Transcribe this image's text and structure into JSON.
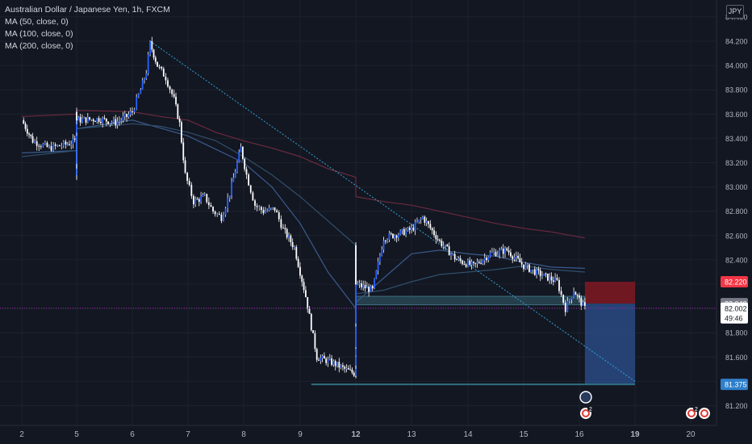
{
  "legend": {
    "symbol": "Australian Dollar / Japanese Yen, 1h, FXCM",
    "ma50": "MA (50, close, 0)",
    "ma100": "MA (100, close, 0)",
    "ma200": "MA (200, close, 0)"
  },
  "currency": "JPY",
  "price_tags": {
    "stop": "82.220",
    "entry": "82.040",
    "last": "82.002",
    "countdown": "49:46",
    "target": "81.375"
  },
  "event_badges": [
    "2",
    "2"
  ],
  "colors": {
    "background": "#131722",
    "candle": "#2962ff",
    "stop_zone": "#801922",
    "target_zone": "#2a4a84",
    "support_zone": "#2b4a57",
    "trendline": "#2ea2d6",
    "ma50": "#3a5a8c",
    "ma100": "#2f4f6b",
    "ma200": "#6b2a3f",
    "stop_tag": "#f23645",
    "target_tag": "#2f7fcb",
    "entry_tag": "#787b86"
  },
  "chart_data": {
    "type": "line",
    "symbol": "AUDJPY",
    "timeframe": "1h",
    "y_ticks": [
      "84.400",
      "84.200",
      "84.000",
      "83.800",
      "83.600",
      "83.400",
      "83.200",
      "83.000",
      "82.800",
      "82.600",
      "82.400",
      "82.200",
      "82.000",
      "81.800",
      "81.600",
      "81.400",
      "81.200"
    ],
    "x_ticks": [
      "2",
      "5",
      "6",
      "7",
      "8",
      "9",
      "12",
      "13",
      "14",
      "15",
      "16",
      "19",
      "20"
    ],
    "ylim": [
      81.1,
      84.45
    ],
    "x_days": [
      2,
      5,
      6,
      7,
      8,
      9,
      12,
      13,
      14,
      15,
      16,
      19,
      20
    ],
    "series": [
      {
        "values": [
          [
            2,
            83.55
          ],
          [
            2.2,
            83.38
          ],
          [
            2.5,
            83.32
          ],
          [
            2.8,
            83.35
          ],
          [
            3.2,
            83.38
          ],
          [
            3.6,
            83.28
          ],
          [
            3.9,
            83.08
          ],
          [
            4.1,
            83.22
          ],
          [
            4.4,
            83.45
          ],
          [
            4.7,
            83.62
          ],
          [
            5.0,
            83.55
          ],
          [
            5.4,
            83.56
          ],
          [
            5.7,
            83.53
          ],
          [
            5.9,
            83.58
          ],
          [
            6.0,
            83.62
          ],
          [
            6.15,
            83.8
          ],
          [
            6.25,
            83.95
          ],
          [
            6.32,
            84.18
          ],
          [
            6.45,
            84.0
          ],
          [
            6.6,
            83.9
          ],
          [
            6.75,
            83.72
          ],
          [
            6.85,
            83.52
          ],
          [
            6.95,
            83.1
          ],
          [
            7.1,
            82.88
          ],
          [
            7.3,
            82.92
          ],
          [
            7.45,
            82.8
          ],
          [
            7.6,
            82.75
          ],
          [
            7.75,
            82.95
          ],
          [
            7.95,
            83.32
          ],
          [
            8.05,
            83.1
          ],
          [
            8.2,
            82.85
          ],
          [
            8.35,
            82.8
          ],
          [
            8.55,
            82.82
          ],
          [
            8.7,
            82.65
          ],
          [
            8.9,
            82.5
          ],
          [
            9.1,
            82.1
          ],
          [
            9.3,
            81.6
          ],
          [
            9.6,
            81.55
          ],
          [
            9.8,
            81.5
          ],
          [
            10.0,
            81.46
          ],
          [
            10.2,
            81.55
          ],
          [
            10.4,
            81.62
          ],
          [
            10.6,
            81.7
          ],
          [
            10.8,
            81.9
          ],
          [
            11.0,
            82.25
          ],
          [
            11.3,
            82.45
          ],
          [
            11.6,
            82.52
          ],
          [
            11.8,
            82.3
          ],
          [
            12.0,
            82.2
          ],
          [
            12.3,
            82.15
          ],
          [
            12.5,
            82.58
          ],
          [
            12.8,
            82.62
          ],
          [
            13.0,
            82.65
          ],
          [
            13.2,
            82.75
          ],
          [
            13.5,
            82.55
          ],
          [
            13.8,
            82.4
          ],
          [
            14.1,
            82.35
          ],
          [
            14.4,
            82.45
          ],
          [
            14.7,
            82.48
          ],
          [
            15.0,
            82.35
          ],
          [
            15.3,
            82.28
          ],
          [
            15.6,
            82.22
          ],
          [
            15.75,
            82.0
          ],
          [
            15.9,
            82.15
          ],
          [
            16.0,
            82.07
          ],
          [
            16.1,
            82.0
          ]
        ]
      },
      {
        "name": "MA (50, close, 0)",
        "values": [
          [
            2,
            83.28
          ],
          [
            3,
            83.3
          ],
          [
            4,
            83.36
          ],
          [
            5,
            83.48
          ],
          [
            6,
            83.55
          ],
          [
            7,
            83.42
          ],
          [
            8,
            83.2
          ],
          [
            8.5,
            83.0
          ],
          [
            9,
            82.7
          ],
          [
            9.5,
            82.3
          ],
          [
            10,
            82.0
          ],
          [
            10.5,
            81.93
          ],
          [
            11,
            81.9
          ],
          [
            11.5,
            81.95
          ],
          [
            12,
            82.05
          ],
          [
            12.5,
            82.25
          ],
          [
            13,
            82.45
          ],
          [
            13.5,
            82.48
          ],
          [
            14,
            82.45
          ],
          [
            14.5,
            82.43
          ],
          [
            15,
            82.38
          ],
          [
            15.5,
            82.34
          ],
          [
            16.1,
            82.33
          ]
        ]
      },
      {
        "name": "MA (100, close, 0)",
        "values": [
          [
            2,
            83.25
          ],
          [
            3,
            83.3
          ],
          [
            4,
            83.38
          ],
          [
            5,
            83.48
          ],
          [
            6,
            83.52
          ],
          [
            6.5,
            83.5
          ],
          [
            7,
            83.45
          ],
          [
            7.5,
            83.38
          ],
          [
            8,
            83.25
          ],
          [
            8.5,
            83.1
          ],
          [
            9,
            82.92
          ],
          [
            9.5,
            82.72
          ],
          [
            10,
            82.52
          ],
          [
            10.5,
            82.35
          ],
          [
            11,
            82.22
          ],
          [
            11.5,
            82.12
          ],
          [
            12,
            82.12
          ],
          [
            12.5,
            82.15
          ],
          [
            13,
            82.22
          ],
          [
            13.5,
            82.28
          ],
          [
            14,
            82.3
          ],
          [
            14.5,
            82.32
          ],
          [
            15,
            82.35
          ],
          [
            15.5,
            82.32
          ],
          [
            16.1,
            82.3
          ]
        ]
      },
      {
        "name": "MA (200, close, 0)",
        "values": [
          [
            2,
            83.58
          ],
          [
            3,
            83.6
          ],
          [
            4,
            83.62
          ],
          [
            5,
            83.63
          ],
          [
            6,
            83.62
          ],
          [
            6.5,
            83.58
          ],
          [
            7,
            83.55
          ],
          [
            7.5,
            83.45
          ],
          [
            8,
            83.38
          ],
          [
            8.5,
            83.32
          ],
          [
            9,
            83.25
          ],
          [
            9.5,
            83.15
          ],
          [
            10,
            83.08
          ],
          [
            10.5,
            83.03
          ],
          [
            11,
            82.98
          ],
          [
            11.5,
            82.95
          ],
          [
            12,
            82.92
          ],
          [
            12.5,
            82.88
          ],
          [
            13,
            82.85
          ],
          [
            13.5,
            82.8
          ],
          [
            14,
            82.75
          ],
          [
            14.5,
            82.7
          ],
          [
            15,
            82.66
          ],
          [
            15.5,
            82.63
          ],
          [
            16.1,
            82.58
          ]
        ]
      }
    ],
    "trendline": {
      "from": [
        6.32,
        84.2
      ],
      "to": [
        19.0,
        81.4
      ]
    },
    "position": {
      "type": "short",
      "entry": 82.04,
      "stop": 82.22,
      "target": 81.375,
      "x_start": 16.1,
      "x_end": 19.0
    },
    "support_zone": {
      "y_low": 82.03,
      "y_high": 82.1,
      "x_start": 10.2,
      "x_end": 16.1
    },
    "target_line": {
      "y": 81.375,
      "x_start": 9.2,
      "x_end": 19.0
    },
    "last_price": 82.002
  }
}
